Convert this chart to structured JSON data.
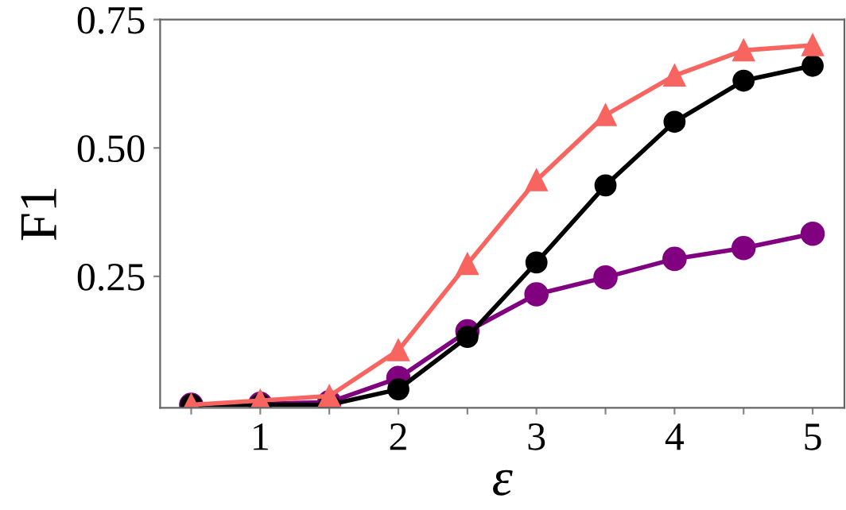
{
  "chart_data": {
    "type": "line",
    "xlabel": "ε",
    "ylabel": "F1",
    "x": [
      0.5,
      1,
      1.5,
      2,
      2.5,
      3,
      3.5,
      4,
      4.5,
      5
    ],
    "series": [
      {
        "color": "#800080",
        "marker": "circle",
        "values": [
          0,
          0.002,
          0.005,
          0.052,
          0.143,
          0.215,
          0.248,
          0.284,
          0.305,
          0.333
        ]
      },
      {
        "color": "#000000",
        "marker": "circle",
        "values": [
          0,
          0,
          0,
          0.03,
          0.132,
          0.277,
          0.427,
          0.551,
          0.631,
          0.66
        ]
      },
      {
        "color": "#f8645f",
        "marker": "triangle",
        "values": [
          0,
          0.008,
          0.017,
          0.106,
          0.274,
          0.437,
          0.564,
          0.641,
          0.69,
          0.7
        ]
      }
    ],
    "xlim": [
      0.275,
      5.23
    ],
    "ylim": [
      -0.006,
      0.75
    ],
    "xticks": [
      {
        "value": 0.5,
        "label": null
      },
      1,
      {
        "value": 1.5,
        "label": null
      },
      2,
      {
        "value": 2.5,
        "label": null
      },
      3,
      {
        "value": 3.5,
        "label": null
      },
      4,
      {
        "value": 4.5,
        "label": null
      },
      5
    ],
    "yticks": [
      0.25,
      {
        "value": 0.5,
        "label": "0.50"
      },
      0.75
    ],
    "grid": false,
    "line_style": "solid"
  }
}
